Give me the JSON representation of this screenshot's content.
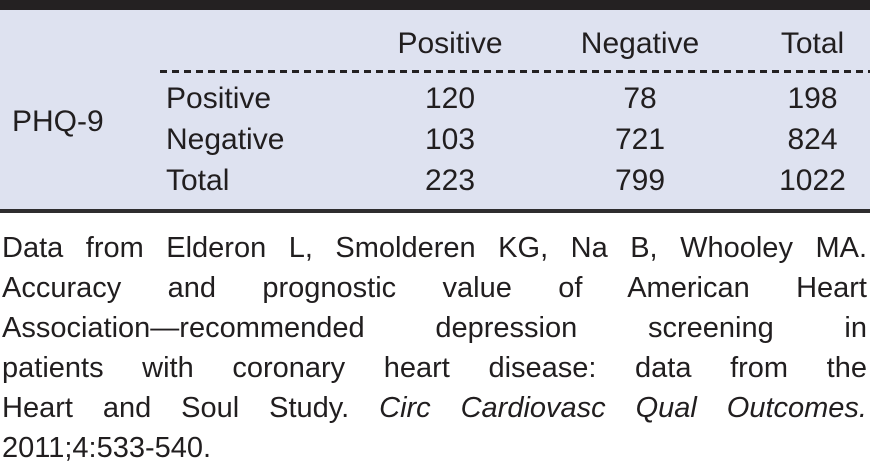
{
  "table": {
    "row_group_label": "PHQ-9",
    "col_headers": [
      "Positive",
      "Negative",
      "Total"
    ],
    "rows": [
      {
        "label": "Positive",
        "values": [
          "120",
          "78",
          "198"
        ]
      },
      {
        "label": "Negative",
        "values": [
          "103",
          "721",
          "824"
        ]
      },
      {
        "label": "Total",
        "values": [
          "223",
          "799",
          "1022"
        ]
      }
    ]
  },
  "caption": {
    "line1": "Data from Elderon L, Smolderen KG, Na B, Whooley MA.",
    "line2": "Accuracy and prognostic value of American Heart",
    "line3": "Association—recommended depression screening in",
    "line4": "patients with coronary heart disease: data from the",
    "line5_regular": "Heart and Soul Study. ",
    "line5_italic": "Circ Cardiovasc Qual Outcomes.",
    "line6": "2011;4:533-540."
  },
  "colors": {
    "panel_background": "#dee2f0",
    "top_rule": "#242122",
    "bottom_rule": "#2e2d2f",
    "text": "#211e1f"
  }
}
